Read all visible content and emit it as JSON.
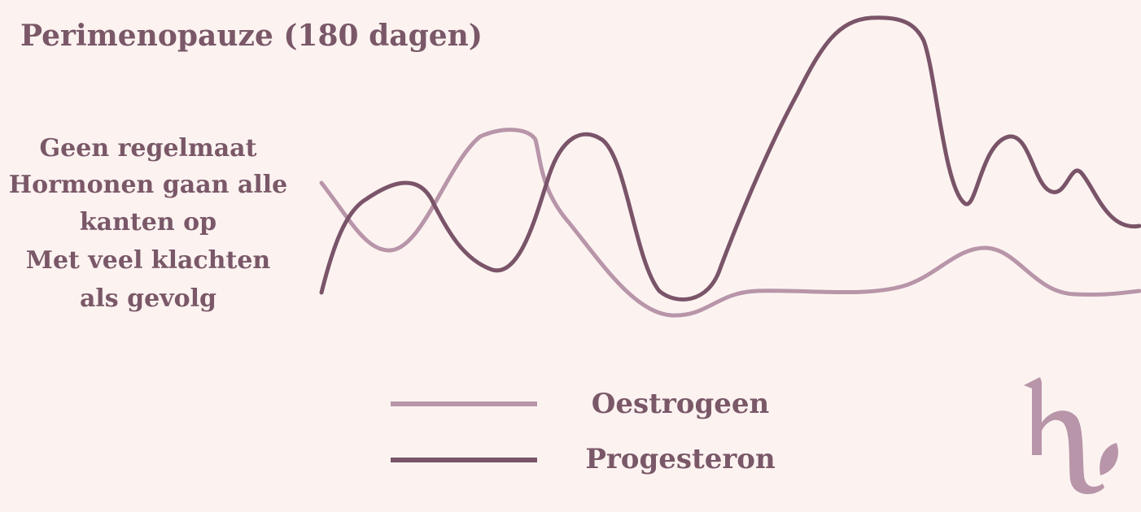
{
  "header": {
    "title": "Perimenopauze (180 dagen)"
  },
  "description": [
    "Geen regelmaat",
    "Hormonen gaan alle",
    "kanten op",
    "Met veel klachten",
    "als gevolg"
  ],
  "legend": [
    {
      "label": "Oestrogeen",
      "color": "#b895a8"
    },
    {
      "label": "Progesteron",
      "color": "#7a5468"
    }
  ]
}
